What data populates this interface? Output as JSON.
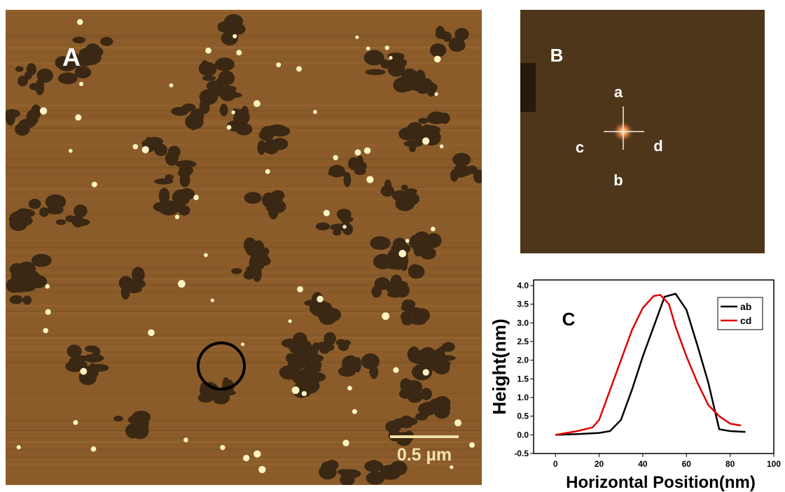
{
  "panel_a": {
    "label": "A",
    "scale_bar": "0.5 µm"
  },
  "panel_b": {
    "label": "B",
    "points": [
      "a",
      "b",
      "c",
      "d"
    ]
  },
  "chart_data": {
    "type": "line",
    "panel_label": "C",
    "x_label": "Horizontal Position(nm)",
    "y_label": "Height(nm)",
    "xlim": [
      -10,
      100
    ],
    "ylim": [
      -0.5,
      4.15
    ],
    "xticks": [
      0,
      20,
      40,
      60,
      80,
      100
    ],
    "yticks": [
      -0.5,
      {
        "value": 0,
        "label": "0.0"
      },
      0.5,
      {
        "value": 1,
        "label": "1.0"
      },
      1.5,
      {
        "value": 2,
        "label": "2.0"
      },
      2.5,
      {
        "value": 3,
        "label": "3.0"
      },
      3.5,
      {
        "value": 4,
        "label": "4.0"
      }
    ],
    "legend": "upper right",
    "series": [
      {
        "name": "ab",
        "color": "#000000",
        "x": [
          0,
          10,
          20,
          25,
          30,
          35,
          40,
          45,
          50,
          55,
          60,
          65,
          70,
          75,
          80,
          87
        ],
        "values": [
          0,
          0.02,
          0.05,
          0.1,
          0.4,
          1.2,
          2.1,
          2.9,
          3.7,
          3.78,
          3.35,
          2.4,
          1.4,
          0.15,
          0.1,
          0.08
        ]
      },
      {
        "name": "cd",
        "color": "#e00000",
        "x": [
          0,
          10,
          17,
          20,
          25,
          30,
          35,
          40,
          45,
          48,
          52,
          55,
          60,
          65,
          70,
          75,
          80,
          85
        ],
        "values": [
          0,
          0.1,
          0.2,
          0.4,
          1.2,
          2.0,
          2.8,
          3.4,
          3.72,
          3.75,
          3.5,
          2.9,
          2.1,
          1.4,
          0.8,
          0.5,
          0.3,
          0.25
        ]
      }
    ]
  }
}
